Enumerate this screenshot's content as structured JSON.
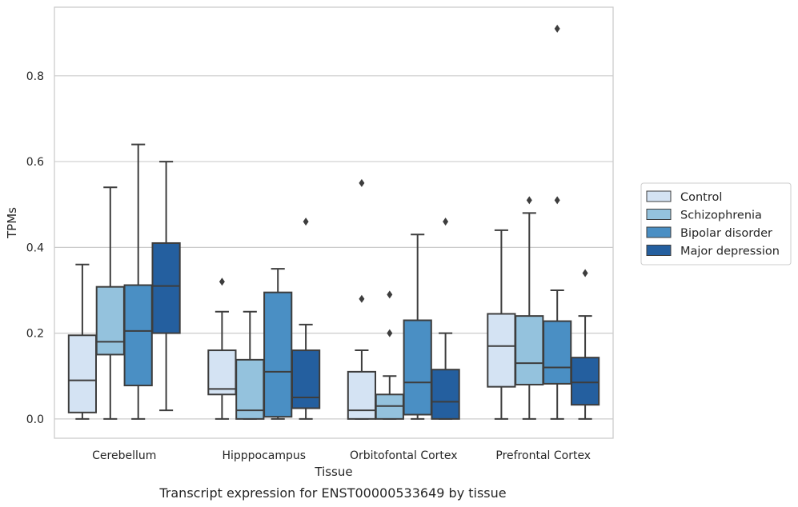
{
  "chart_data": {
    "type": "box",
    "xlabel": "Tissue",
    "ylabel": "TPMs",
    "caption": "Transcript expression for ENST00000533649 by tissue",
    "categories": [
      "Cerebellum",
      "Hipppocampus",
      "Orbitofontal Cortex",
      "Prefrontal Cortex"
    ],
    "ylim": [
      -0.045,
      0.96
    ],
    "yticks": [
      0.0,
      0.2,
      0.4,
      0.6,
      0.8
    ],
    "ytick_labels": [
      "0.0",
      "0.2",
      "0.4",
      "0.6",
      "0.8"
    ],
    "grid": "horizontal",
    "legend_position": "right",
    "colors": [
      "#d4e3f3",
      "#94c2dd",
      "#4a8fc4",
      "#245f9f"
    ],
    "series": [
      {
        "name": "Control",
        "boxes": [
          {
            "whislo": 0.0,
            "q1": 0.015,
            "med": 0.09,
            "q3": 0.195,
            "whishi": 0.36,
            "fliers": []
          },
          {
            "whislo": 0.0,
            "q1": 0.057,
            "med": 0.07,
            "q3": 0.16,
            "whishi": 0.25,
            "fliers": [
              0.32
            ]
          },
          {
            "whislo": 0.0,
            "q1": 0.0,
            "med": 0.02,
            "q3": 0.11,
            "whishi": 0.16,
            "fliers": [
              0.28,
              0.55
            ]
          },
          {
            "whislo": 0.0,
            "q1": 0.075,
            "med": 0.17,
            "q3": 0.245,
            "whishi": 0.44,
            "fliers": []
          }
        ]
      },
      {
        "name": "Schizophrenia",
        "boxes": [
          {
            "whislo": 0.0,
            "q1": 0.15,
            "med": 0.18,
            "q3": 0.308,
            "whishi": 0.54,
            "fliers": []
          },
          {
            "whislo": 0.0,
            "q1": 0.0,
            "med": 0.02,
            "q3": 0.138,
            "whishi": 0.25,
            "fliers": []
          },
          {
            "whislo": 0.0,
            "q1": 0.0,
            "med": 0.03,
            "q3": 0.057,
            "whishi": 0.1,
            "fliers": [
              0.2,
              0.29
            ]
          },
          {
            "whislo": 0.0,
            "q1": 0.08,
            "med": 0.13,
            "q3": 0.24,
            "whishi": 0.48,
            "fliers": [
              0.51
            ]
          }
        ]
      },
      {
        "name": "Bipolar disorder",
        "boxes": [
          {
            "whislo": 0.0,
            "q1": 0.078,
            "med": 0.205,
            "q3": 0.312,
            "whishi": 0.64,
            "fliers": []
          },
          {
            "whislo": 0.0,
            "q1": 0.005,
            "med": 0.11,
            "q3": 0.295,
            "whishi": 0.35,
            "fliers": []
          },
          {
            "whislo": 0.0,
            "q1": 0.01,
            "med": 0.085,
            "q3": 0.23,
            "whishi": 0.43,
            "fliers": []
          },
          {
            "whislo": 0.0,
            "q1": 0.082,
            "med": 0.12,
            "q3": 0.228,
            "whishi": 0.3,
            "fliers": [
              0.51,
              0.91
            ]
          }
        ]
      },
      {
        "name": "Major depression",
        "boxes": [
          {
            "whislo": 0.02,
            "q1": 0.2,
            "med": 0.31,
            "q3": 0.41,
            "whishi": 0.6,
            "fliers": []
          },
          {
            "whislo": 0.0,
            "q1": 0.025,
            "med": 0.05,
            "q3": 0.16,
            "whishi": 0.22,
            "fliers": [
              0.46
            ]
          },
          {
            "whislo": 0.0,
            "q1": 0.0,
            "med": 0.04,
            "q3": 0.115,
            "whishi": 0.2,
            "fliers": [
              0.46
            ]
          },
          {
            "whislo": 0.0,
            "q1": 0.033,
            "med": 0.085,
            "q3": 0.143,
            "whishi": 0.24,
            "fliers": [
              0.34
            ]
          }
        ]
      }
    ]
  }
}
